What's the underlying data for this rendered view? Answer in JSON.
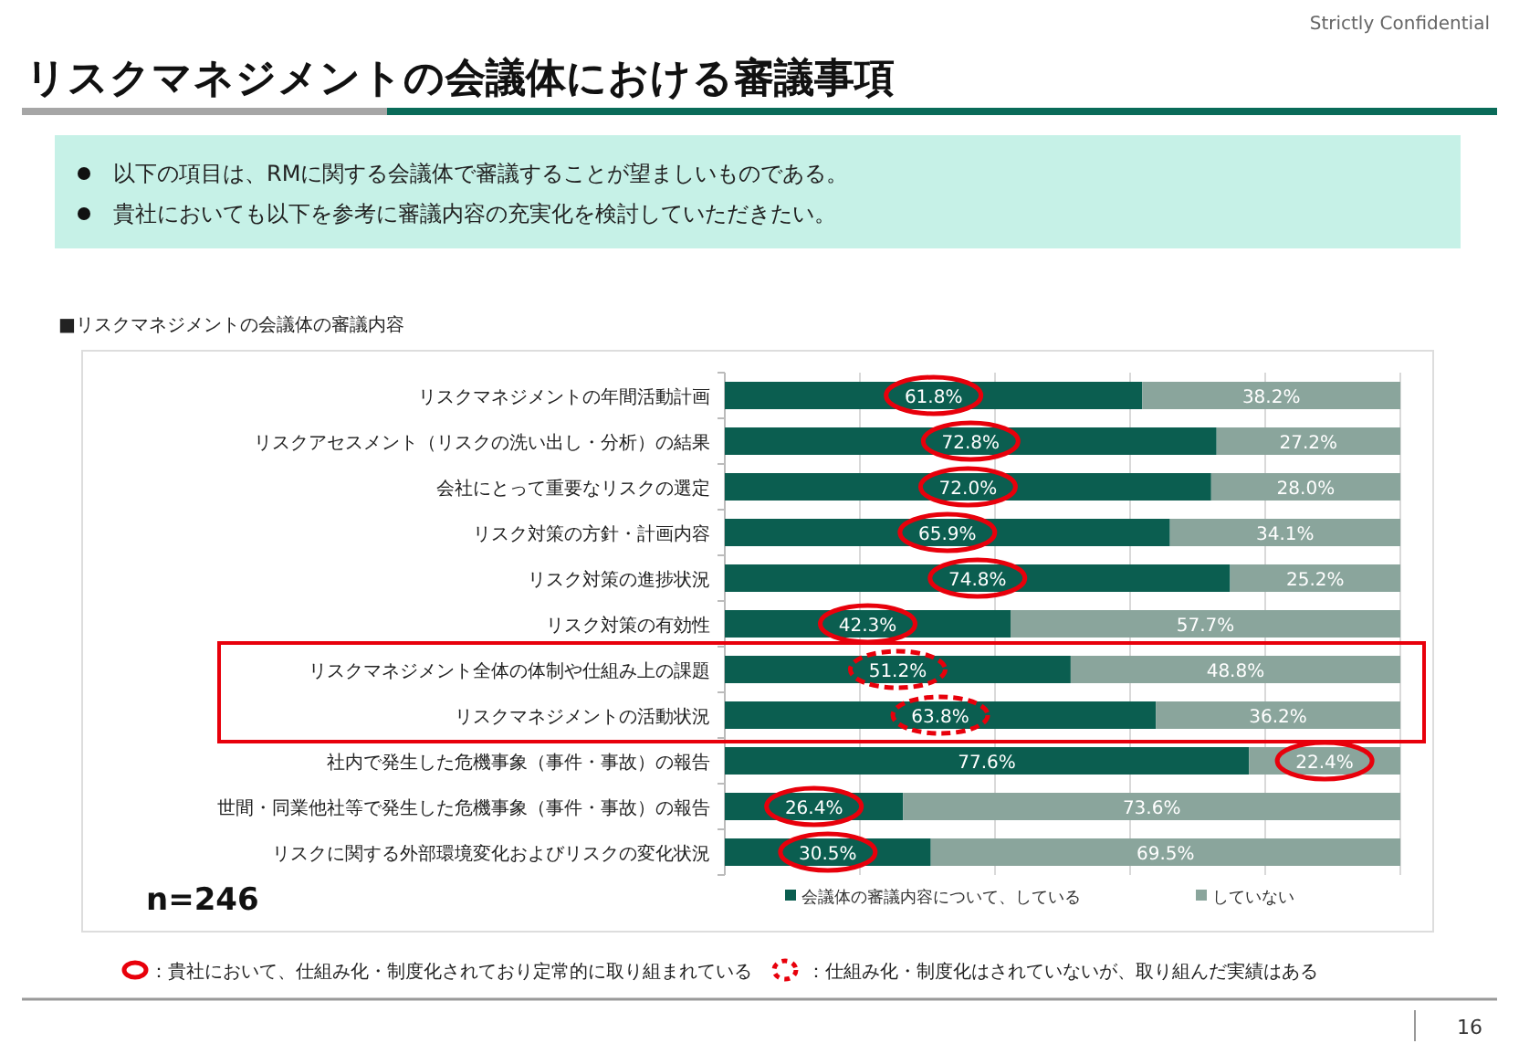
{
  "chart_data": {
    "type": "bar",
    "orientation": "horizontal",
    "stacked": true,
    "title": "リスクマネジメントの会議体における審議事項",
    "annotations": [
      "Strictly Confidential",
      "以下の項目は、RMに関する会議体で審議することが望ましいものである。",
      "貴社においても以下を参考に審議内容の充実化を検討していただきたい。",
      "■リスクマネジメントの会議体の審議内容",
      "n=246",
      "：貴社において、仕組み化・制度化されており定常的に取り組まれている",
      "：仕組み化・制度化はされていないが、取り組んだ実績はある",
      "16"
    ],
    "categories": [
      "リスクマネジメントの年間活動計画",
      "リスクアセスメント（リスクの洗い出し・分析）の結果",
      "会社にとって重要なリスクの選定",
      "リスク対策の方針・計画内容",
      "リスク対策の進捗状況",
      "リスク対策の有効性",
      "リスクマネジメント全体の体制や仕組み上の課題",
      "リスクマネジメントの活動状況",
      "社内で発生した危機事象（事件・事故）の報告",
      "世間・同業他社等で発生した危機事象（事件・事故）の報告",
      "リスクに関する外部環境変化およびリスクの変化状況"
    ],
    "series": [
      {
        "name": "会議体の審議内容について、している",
        "color": "#0b5e50",
        "values": [
          61.8,
          72.8,
          72.0,
          65.9,
          74.8,
          42.3,
          51.2,
          63.8,
          77.6,
          26.4,
          30.5
        ],
        "value_labels": [
          "61.8%",
          "72.8%",
          "72.0%",
          "65.9%",
          "74.8%",
          "42.3%",
          "51.2%",
          "63.8%",
          "77.6%",
          "26.4%",
          "30.5%"
        ]
      },
      {
        "name": "していない",
        "color": "#8aa59c",
        "values": [
          38.2,
          27.2,
          28.0,
          34.1,
          25.2,
          57.7,
          48.8,
          36.2,
          22.4,
          73.6,
          69.5
        ],
        "value_labels": [
          "38.2%",
          "27.2%",
          "28.0%",
          "34.1%",
          "25.2%",
          "57.7%",
          "48.8%",
          "36.2%",
          "22.4%",
          "73.6%",
          "69.5%"
        ]
      }
    ],
    "xlim": [
      0,
      100
    ],
    "xticks": [
      {
        "value": 0,
        "label": null
      },
      {
        "value": 20,
        "label": null
      },
      {
        "value": 40,
        "label": null
      },
      {
        "value": 60,
        "label": null
      },
      {
        "value": 80,
        "label": null
      },
      {
        "value": 100,
        "label": null
      }
    ],
    "tick_labels": "y",
    "grid": "x",
    "legend": "bottom"
  }
}
